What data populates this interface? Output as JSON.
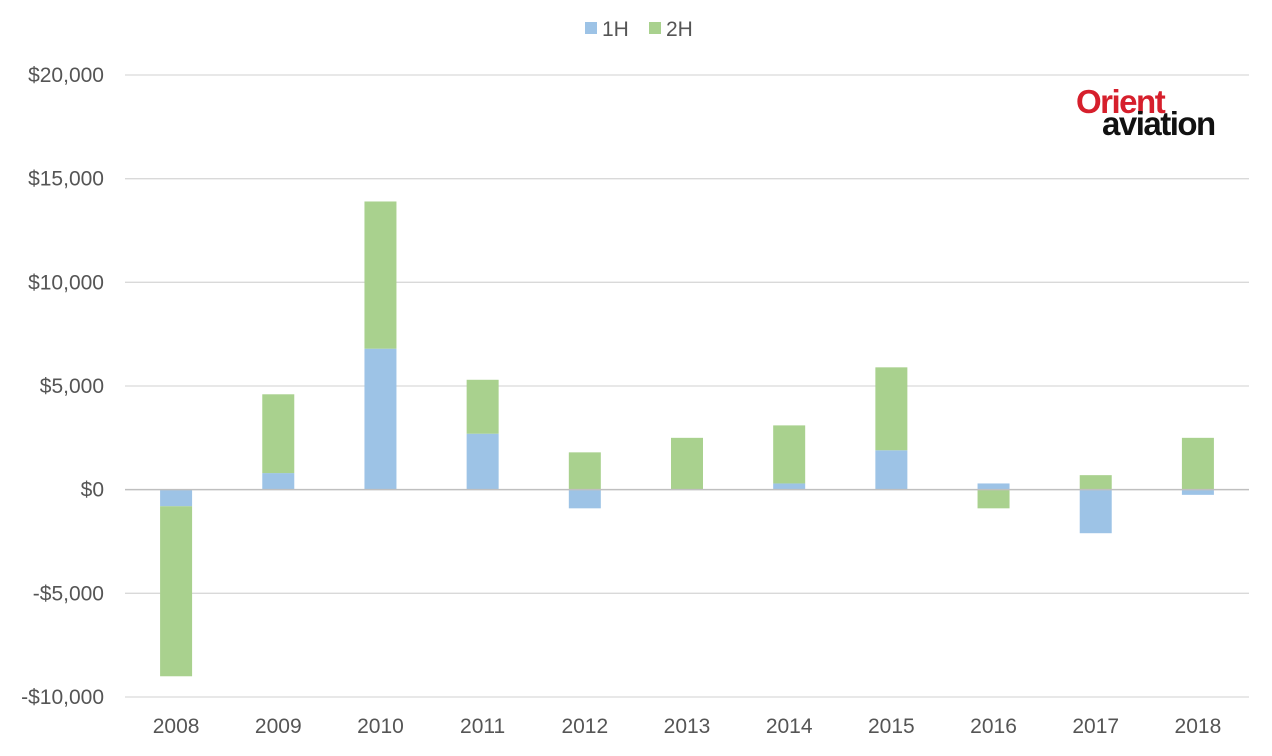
{
  "logo": {
    "line1": "Orient",
    "line2": "aviation"
  },
  "colors": {
    "h1": "#9dc3e6",
    "h2": "#a9d18e",
    "grid": "#d9d9d9",
    "axis": "#bfbfbf",
    "text": "#555555"
  },
  "chart_data": {
    "type": "bar",
    "stacked": true,
    "legend_position": "top-center",
    "grid": true,
    "categories": [
      "2008",
      "2009",
      "2010",
      "2011",
      "2012",
      "2013",
      "2014",
      "2015",
      "2016",
      "2017",
      "2018"
    ],
    "series": [
      {
        "name": "1H",
        "values": [
          -800,
          800,
          6800,
          2700,
          -900,
          0,
          300,
          1900,
          300,
          -2100,
          -250
        ]
      },
      {
        "name": "2H",
        "values": [
          -8200,
          3800,
          7100,
          2600,
          1800,
          2500,
          2800,
          4000,
          -900,
          700,
          2500
        ]
      }
    ],
    "ylim": [
      -10000,
      20000
    ],
    "yticks": [
      -10000,
      -5000,
      0,
      5000,
      10000,
      15000,
      20000
    ],
    "ytick_labels": [
      "-$10,000",
      "-$5,000",
      "$0",
      "$5,000",
      "$10,000",
      "$15,000",
      "$20,000"
    ],
    "title": "",
    "xlabel": "",
    "ylabel": ""
  }
}
